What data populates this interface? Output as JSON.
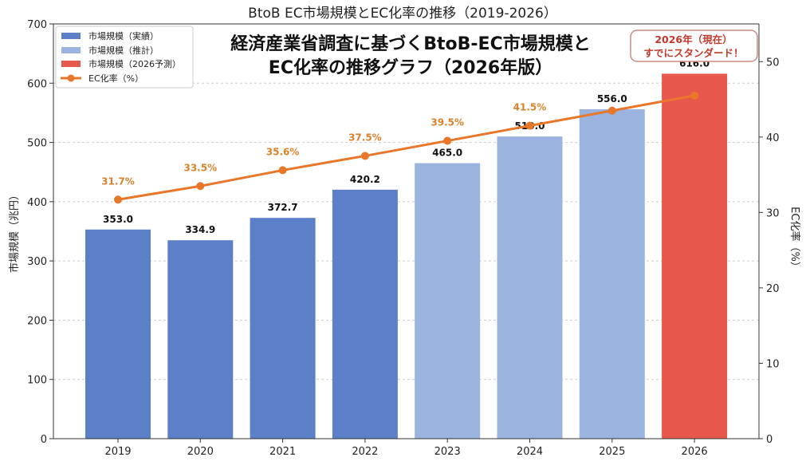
{
  "chart_data": {
    "type": "bar+line",
    "title": "BtoB EC市場規模とEC化率の推移（2019-2026）",
    "overlay_title": [
      "経済産業省調査に基づくBtoB-EC市場規模と",
      "EC化率の推移グラフ（2026年版）"
    ],
    "annotation": [
      "2026年（現在）",
      "すでにスタンダード！"
    ],
    "categories": [
      "2019",
      "2020",
      "2021",
      "2022",
      "2023",
      "2024",
      "2025",
      "2026"
    ],
    "ylabel": "市場規模（兆円）",
    "y2label": "EC化率（%）",
    "ylim": [
      0,
      700
    ],
    "y2lim": [
      0,
      55
    ],
    "yticks": [
      "0",
      "100",
      "200",
      "300",
      "400",
      "500",
      "600",
      "700"
    ],
    "y2ticks": [
      "0",
      "10",
      "20",
      "30",
      "40",
      "50"
    ],
    "grid": true,
    "legend_position": "top-left",
    "legend": [
      "市場規模（実績）",
      "市場規模（推計）",
      "市場規模（2026予測）",
      "EC化率（%）"
    ],
    "bar_series": {
      "values": [
        353.0,
        334.9,
        372.7,
        420.2,
        465.0,
        510.0,
        556.0,
        616.0
      ],
      "labels": [
        "353.0",
        "334.9",
        "372.7",
        "420.2",
        "465.0",
        "510.0",
        "556.0",
        "616.0"
      ],
      "kind": [
        "actual",
        "actual",
        "actual",
        "actual",
        "estimate",
        "estimate",
        "estimate",
        "forecast"
      ]
    },
    "line_series": {
      "name": "EC化率（%）",
      "values": [
        31.7,
        33.5,
        35.6,
        37.5,
        39.5,
        41.5,
        43.5,
        45.5
      ],
      "labels": [
        "31.7%",
        "33.5%",
        "35.6%",
        "37.5%",
        "39.5%",
        "41.5%",
        "",
        ""
      ]
    },
    "colors": {
      "actual": "#5b80c8",
      "estimate": "#9bb3df",
      "forecast": "#e8574b",
      "line": "#e8772a",
      "line_label": "#d9822b",
      "annotation": "#c0392b"
    }
  }
}
